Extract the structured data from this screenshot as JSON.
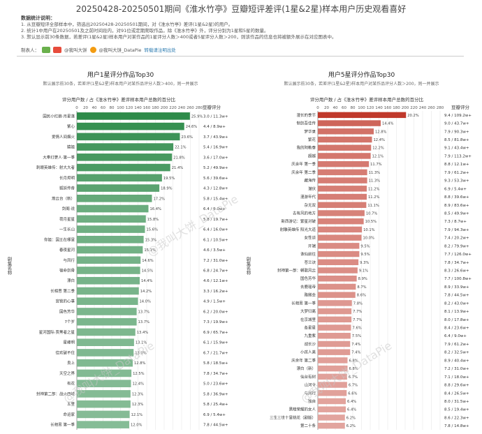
{
  "header": {
    "title": "20250428-20250501期间《淮水竹亭》豆瓣短评差评(1星&2星)样本用户历史观看喜好"
  },
  "notes": {
    "heading": "数据统计说明：",
    "lines": [
      "1. 从豆瓣短评全部样本中，筛选出20250428-20250501期间，对《淮水竹亭》差评(1星&2星)的用户。",
      "2. 统计1中用户在20250501及之前时间段内，对91位或定期爬取作品，除《淮水竹亭》外，评分分别为1星和5星的数量。",
      "3. 默认显示前30条数据，若差评(1星&2星)样本用户对某作品的1星评分人数＞400或者5星评分人数＞200，则该作品的信息也将被额外展示在对应图表中。"
    ]
  },
  "credits": {
    "label": "制表人：",
    "items": [
      "@我叫大饼",
      "@我叫大饼_DataPie",
      "转载请注明出处"
    ]
  },
  "watermark": "@我叫大饼_DataPie",
  "chart_data": [
    {
      "type": "bar",
      "orientation": "horizontal",
      "title": "用户1星评分作品Top30",
      "subtitle": "默认展示前30条，若差评(1星&2星)样本用户对某作品评分人数＞400，则一并展示",
      "xlabel": "评分用户数 / 占《淮水竹亭》差评样本用户总数的百分比",
      "ylabel": "剧集名称",
      "extra_col_header": "豆瓣评分",
      "color": "#2e8b4a",
      "xlim": [
        0,
        280
      ],
      "xticks": [
        0,
        20,
        40,
        60,
        80,
        100,
        120,
        140,
        160,
        180,
        200,
        220,
        240,
        260,
        280
      ],
      "categories": [
        "国民小红娘·月星落",
        "紫心",
        "爱情人间烟火",
        "嬉姐",
        "大奉打更人·第一季",
        "刺眼英雄传：射大大者",
        "长月烬明",
        "狐妖传奇",
        "燕云台（新）",
        "剑阁·说",
        "荷月星星",
        "一生长山",
        "你姐：国王在哪里",
        "春夜星河",
        "与凤行",
        "宿命剑骨",
        "漂白",
        "长相思 第二季",
        "宫锁的心事",
        "国色芳华",
        "7个岁",
        "星河国际·贾黑者之星",
        "星峰明",
        "佳欢破不住",
        "良上",
        "天空之界",
        "有花",
        "封神第二部：战火西岐",
        "五里",
        "命运家",
        "长相思 第一季"
      ],
      "values": [
        259,
        246,
        236,
        221,
        218,
        214,
        195,
        189,
        172,
        164,
        158,
        156,
        153,
        151,
        146,
        145,
        144,
        142,
        140,
        137,
        137,
        134,
        131,
        130,
        128,
        125,
        124,
        123,
        123,
        121,
        120
      ],
      "labels": [
        "25.9%",
        "24.6%",
        "23.6%",
        "22.1%",
        "21.8%",
        "21.4%",
        "19.5%",
        "18.9%",
        "17.2%",
        "16.4%",
        "15.8%",
        "15.6%",
        "15.3%",
        "15.1%",
        "14.6%",
        "14.5%",
        "14.4%",
        "14.2%",
        "14.0%",
        "13.7%",
        "13.7%",
        "13.4%",
        "13.1%",
        "13.0%",
        "12.8%",
        "12.5%",
        "12.4%",
        "12.3%",
        "12.3%",
        "12.1%",
        "12.0%"
      ],
      "ratings": [
        "3.0 / 11.3w+",
        "4.4 / 8.9w+",
        "3.7 / 43.9w+",
        "5.4 / 16.9w+",
        "3.6 / 17.0w+",
        "5.2 / 49.9w+",
        "5.6 / 39.6w+",
        "4.3 / 12.8w+",
        "5.8 / 15.4w+",
        "6.4 / 9.0w+",
        "5.8 / 19.7w+",
        "6.4 / 16.0w+",
        "6.1 / 10.5w+",
        "4.6 / 3.5w+",
        "7.2 / 31.0w+",
        "6.8 / 24.7w+",
        "4.6 / 12.1w+",
        "3.3 / 16.2w+",
        "4.9 / 1.5w+",
        "6.2 / 20.0w+",
        "7.3 / 19.9w+",
        "6.9 / 65.7w+",
        "6.1 / 15.9w+",
        "6.7 / 21.7w+",
        "5.8 / 18.5w+",
        "7.8 / 34.7w+",
        "5.0 / 23.6w+",
        "5.8 / 36.9w+",
        "5.8 / 25.4w+",
        "6.9 / 5.4w+",
        "7.8 / 44.5w+"
      ]
    },
    {
      "type": "bar",
      "orientation": "horizontal",
      "title": "用户5星评分作品Top30",
      "subtitle": "默认展示前30条，若差评(1星&2星)样本用户对某作品评分人数＞200，则一并展示",
      "xlabel": "评分用户数 / 占《淮水竹亭》差评样本用户总数的百分比",
      "ylabel": "剧集名称",
      "extra_col_header": "豆瓣评分",
      "color": "#c0392b",
      "xlim": [
        0,
        280
      ],
      "xticks": [
        0,
        20,
        40,
        60,
        80,
        100,
        120,
        140,
        160,
        180,
        200,
        220,
        240,
        260,
        280
      ],
      "categories": [
        "漫长的季节",
        "制剑吾佳传",
        "梦华录",
        "繁花",
        "我的阿勒泰",
        "超越",
        "庆余年 第一季",
        "庆余年 第二季",
        "藏海传",
        "潜伏",
        "漫游年代",
        "杂无双",
        "去有风的地方",
        "新西游记：繁星对破",
        "射雕英雄传 阳光大道",
        "女性谈",
        "开端",
        "诛仙前往",
        "苍兰诀",
        "封神第一部：朝歌风云",
        "国色芳华",
        "去鹿瑶帝",
        "路微会",
        "长相思 第一季",
        "大梦归离",
        "在京城里",
        "各星星",
        "九重紫",
        "战长沙",
        "小孩人美",
        "庆余年 第二季",
        "漂白（新）",
        "仙台有树",
        "山河令",
        "与凤行",
        "独自",
        "黑暗荣耀的女人",
        "三生三世十里桃花（剧版）",
        "第二十条"
      ],
      "values": [
        202,
        144,
        128,
        124,
        122,
        121,
        117,
        113,
        113,
        112,
        112,
        111,
        107,
        105,
        101,
        100,
        95,
        95,
        93,
        91,
        89,
        87,
        86,
        78,
        77,
        77,
        76,
        75,
        74,
        74,
        68,
        68,
        67,
        67,
        66,
        64,
        64,
        62,
        62
      ],
      "labels": [
        "20.2%",
        "14.4%",
        "12.8%",
        "12.4%",
        "12.2%",
        "12.1%",
        "11.7%",
        "11.3%",
        "11.3%",
        "11.2%",
        "11.2%",
        "11.1%",
        "10.7%",
        "10.5%",
        "10.1%",
        "10.0%",
        "9.5%",
        "9.5%",
        "9.3%",
        "9.1%",
        "8.9%",
        "8.7%",
        "8.6%",
        "7.8%",
        "7.7%",
        "7.7%",
        "7.6%",
        "7.5%",
        "7.4%",
        "7.4%",
        "6.8%",
        "6.8%",
        "6.7%",
        "6.7%",
        "6.6%",
        "6.4%",
        "6.4%",
        "6.2%",
        "6.2%"
      ],
      "ratings": [
        "9.4 / 109.2w+",
        "9.0 / 43.7w+",
        "7.9 / 90.3w+",
        "8.5 / 81.8w+",
        "9.1 / 43.4w+",
        "7.9 / 113.2w+",
        "8.8 / 12.1w+",
        "7.9 / 61.2w+",
        "9.3 / 53.3w+",
        "6.9 / 5.4w+",
        "8.8 / 39.6w+",
        "8.9 / 83.6w+",
        "8.5 / 49.9w+",
        "7.3 / 8.7w+",
        "7.9 / 94.3w+",
        "7.4 / 20.2w+",
        "8.2 / 79.9w+",
        "7.7 / 126.0w+",
        "7.8 / 34.7w+",
        "8.3 / 26.6w+",
        "7.7 / 100.8w+",
        "8.9 / 33.9w+",
        "7.8 / 44.5w+",
        "8.2 / 43.0w+",
        "8.1 / 13.9w+",
        "8.0 / 17.8w+",
        "8.4 / 23.6w+",
        "6.4 / 9.0w+",
        "7.9 / 61.2w+",
        "8.2 / 32.5w+",
        "8.9 / 40.4w+",
        "7.2 / 31.0w+",
        "7.1 / 18.0w+",
        "8.8 / 29.6w+",
        "8.4 / 26.5w+",
        "8.0 / 31.5w+",
        "8.5 / 19.4w+",
        "8.6 / 22.3w+",
        "7.8 / 14.8w+"
      ]
    }
  ]
}
